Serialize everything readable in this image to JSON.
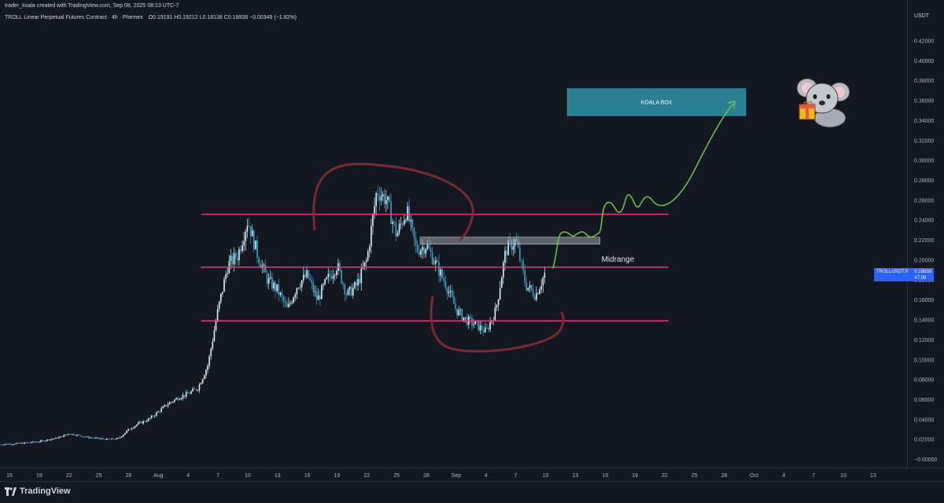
{
  "header": {
    "credit": "trader_koala created with TradingView.com, Sep 08, 2025 08:13 UTC-7",
    "symbol_line": "TROLL Linear Perpetual Futures Contract · 4h · Phemex",
    "open": "O0.19191",
    "high": "H0.19212",
    "low": "L0.18138",
    "close": "C0.18838",
    "change": "−0.00349 (−1.82%)"
  },
  "price_axis": {
    "unit": "USDT",
    "ticks": [
      "0.42000",
      "0.40000",
      "0.38000",
      "0.36000",
      "0.34000",
      "0.32000",
      "0.30000",
      "0.28000",
      "0.26000",
      "0.24000",
      "0.22000",
      "0.20000",
      "0.18000",
      "0.16000",
      "0.14000",
      "0.12000",
      "0.10000",
      "0.08000",
      "0.06000",
      "0.04000",
      "0.02000",
      "−0.00000"
    ]
  },
  "time_axis": {
    "ticks": [
      "16",
      "19",
      "22",
      "25",
      "28",
      "Aug",
      "4",
      "7",
      "10",
      "13",
      "16",
      "19",
      "22",
      "25",
      "28",
      "Sep",
      "4",
      "7",
      "10",
      "13",
      "16",
      "19",
      "22",
      "25",
      "28",
      "Oct",
      "4",
      "7",
      "10",
      "13"
    ]
  },
  "price_tag": {
    "symbol": "TROLLUSDT.P",
    "price": "0.18838",
    "countdown": "47:09"
  },
  "annotations": {
    "midrange": "Midrange",
    "box": "KOALA BOX"
  },
  "footer": {
    "brand": "TradingView"
  },
  "colors": {
    "background": "#131722",
    "candle_up": "#d9f2ff",
    "candle_down": "#3aa6c9",
    "level_line": "#e8357a",
    "marker": "#7a2a30",
    "projection": "#6ac04e",
    "koala_box": "#2b7f93",
    "resistance": "#9aa0a8",
    "price_tag": "#2962ff"
  },
  "chart_data": {
    "type": "candlestick",
    "timeframe": "4h",
    "y_axis": {
      "label": "USDT",
      "range": [
        -0.01,
        0.43
      ]
    },
    "x_axis": {
      "start": "2025-07-16",
      "end": "2025-10-13"
    },
    "series": [
      {
        "type": "close_path",
        "points": [
          [
            "2025-07-15",
            0.015
          ],
          [
            "2025-07-17",
            0.016
          ],
          [
            "2025-07-19",
            0.018
          ],
          [
            "2025-07-21",
            0.022
          ],
          [
            "2025-07-22",
            0.026
          ],
          [
            "2025-07-24",
            0.022
          ],
          [
            "2025-07-26",
            0.02
          ],
          [
            "2025-07-27",
            0.021
          ],
          [
            "2025-07-28",
            0.03
          ],
          [
            "2025-07-29",
            0.036
          ],
          [
            "2025-07-30",
            0.04
          ],
          [
            "2025-07-31",
            0.048
          ],
          [
            "2025-08-01",
            0.056
          ],
          [
            "2025-08-02",
            0.062
          ],
          [
            "2025-08-03",
            0.066
          ],
          [
            "2025-08-04",
            0.072
          ],
          [
            "2025-08-05",
            0.095
          ],
          [
            "2025-08-06",
            0.15
          ],
          [
            "2025-08-07",
            0.195
          ],
          [
            "2025-08-08",
            0.205
          ],
          [
            "2025-08-09",
            0.24
          ],
          [
            "2025-08-10",
            0.205
          ],
          [
            "2025-08-11",
            0.18
          ],
          [
            "2025-08-12",
            0.17
          ],
          [
            "2025-08-13",
            0.15
          ],
          [
            "2025-08-14",
            0.175
          ],
          [
            "2025-08-15",
            0.185
          ],
          [
            "2025-08-16",
            0.16
          ],
          [
            "2025-08-17",
            0.18
          ],
          [
            "2025-08-18",
            0.195
          ],
          [
            "2025-08-19",
            0.165
          ],
          [
            "2025-08-20",
            0.175
          ],
          [
            "2025-08-21",
            0.2
          ],
          [
            "2025-08-22",
            0.27
          ],
          [
            "2025-08-23",
            0.26
          ],
          [
            "2025-08-24",
            0.225
          ],
          [
            "2025-08-25",
            0.25
          ],
          [
            "2025-08-26",
            0.21
          ],
          [
            "2025-08-27",
            0.215
          ],
          [
            "2025-08-28",
            0.195
          ],
          [
            "2025-08-29",
            0.175
          ],
          [
            "2025-08-30",
            0.15
          ],
          [
            "2025-08-31",
            0.14
          ],
          [
            "2025-09-01",
            0.135
          ],
          [
            "2025-09-02",
            0.128
          ],
          [
            "2025-09-03",
            0.15
          ],
          [
            "2025-09-04",
            0.21
          ],
          [
            "2025-09-05",
            0.22
          ],
          [
            "2025-09-06",
            0.175
          ],
          [
            "2025-09-07",
            0.165
          ],
          [
            "2025-09-08",
            0.188
          ]
        ]
      }
    ],
    "levels": [
      {
        "label": "",
        "price": 0.246,
        "from": "2025-08-05",
        "to": "2025-09-20"
      },
      {
        "label": "Midrange",
        "price": 0.193,
        "from": "2025-08-05",
        "to": "2025-09-20"
      },
      {
        "label": "",
        "price": 0.139,
        "from": "2025-08-05",
        "to": "2025-09-20"
      }
    ],
    "zones": [
      {
        "label": "",
        "price_top": 0.223,
        "price_bottom": 0.216,
        "from": "2025-08-27",
        "to": "2025-09-13"
      },
      {
        "label": "KOALA BOX",
        "price_top": 0.372,
        "price_bottom": 0.345,
        "from": "2025-09-11",
        "to": "2025-09-28"
      }
    ],
    "projection": {
      "from": [
        "2025-09-08",
        0.193
      ],
      "to": [
        "2025-09-27",
        0.358
      ]
    }
  }
}
